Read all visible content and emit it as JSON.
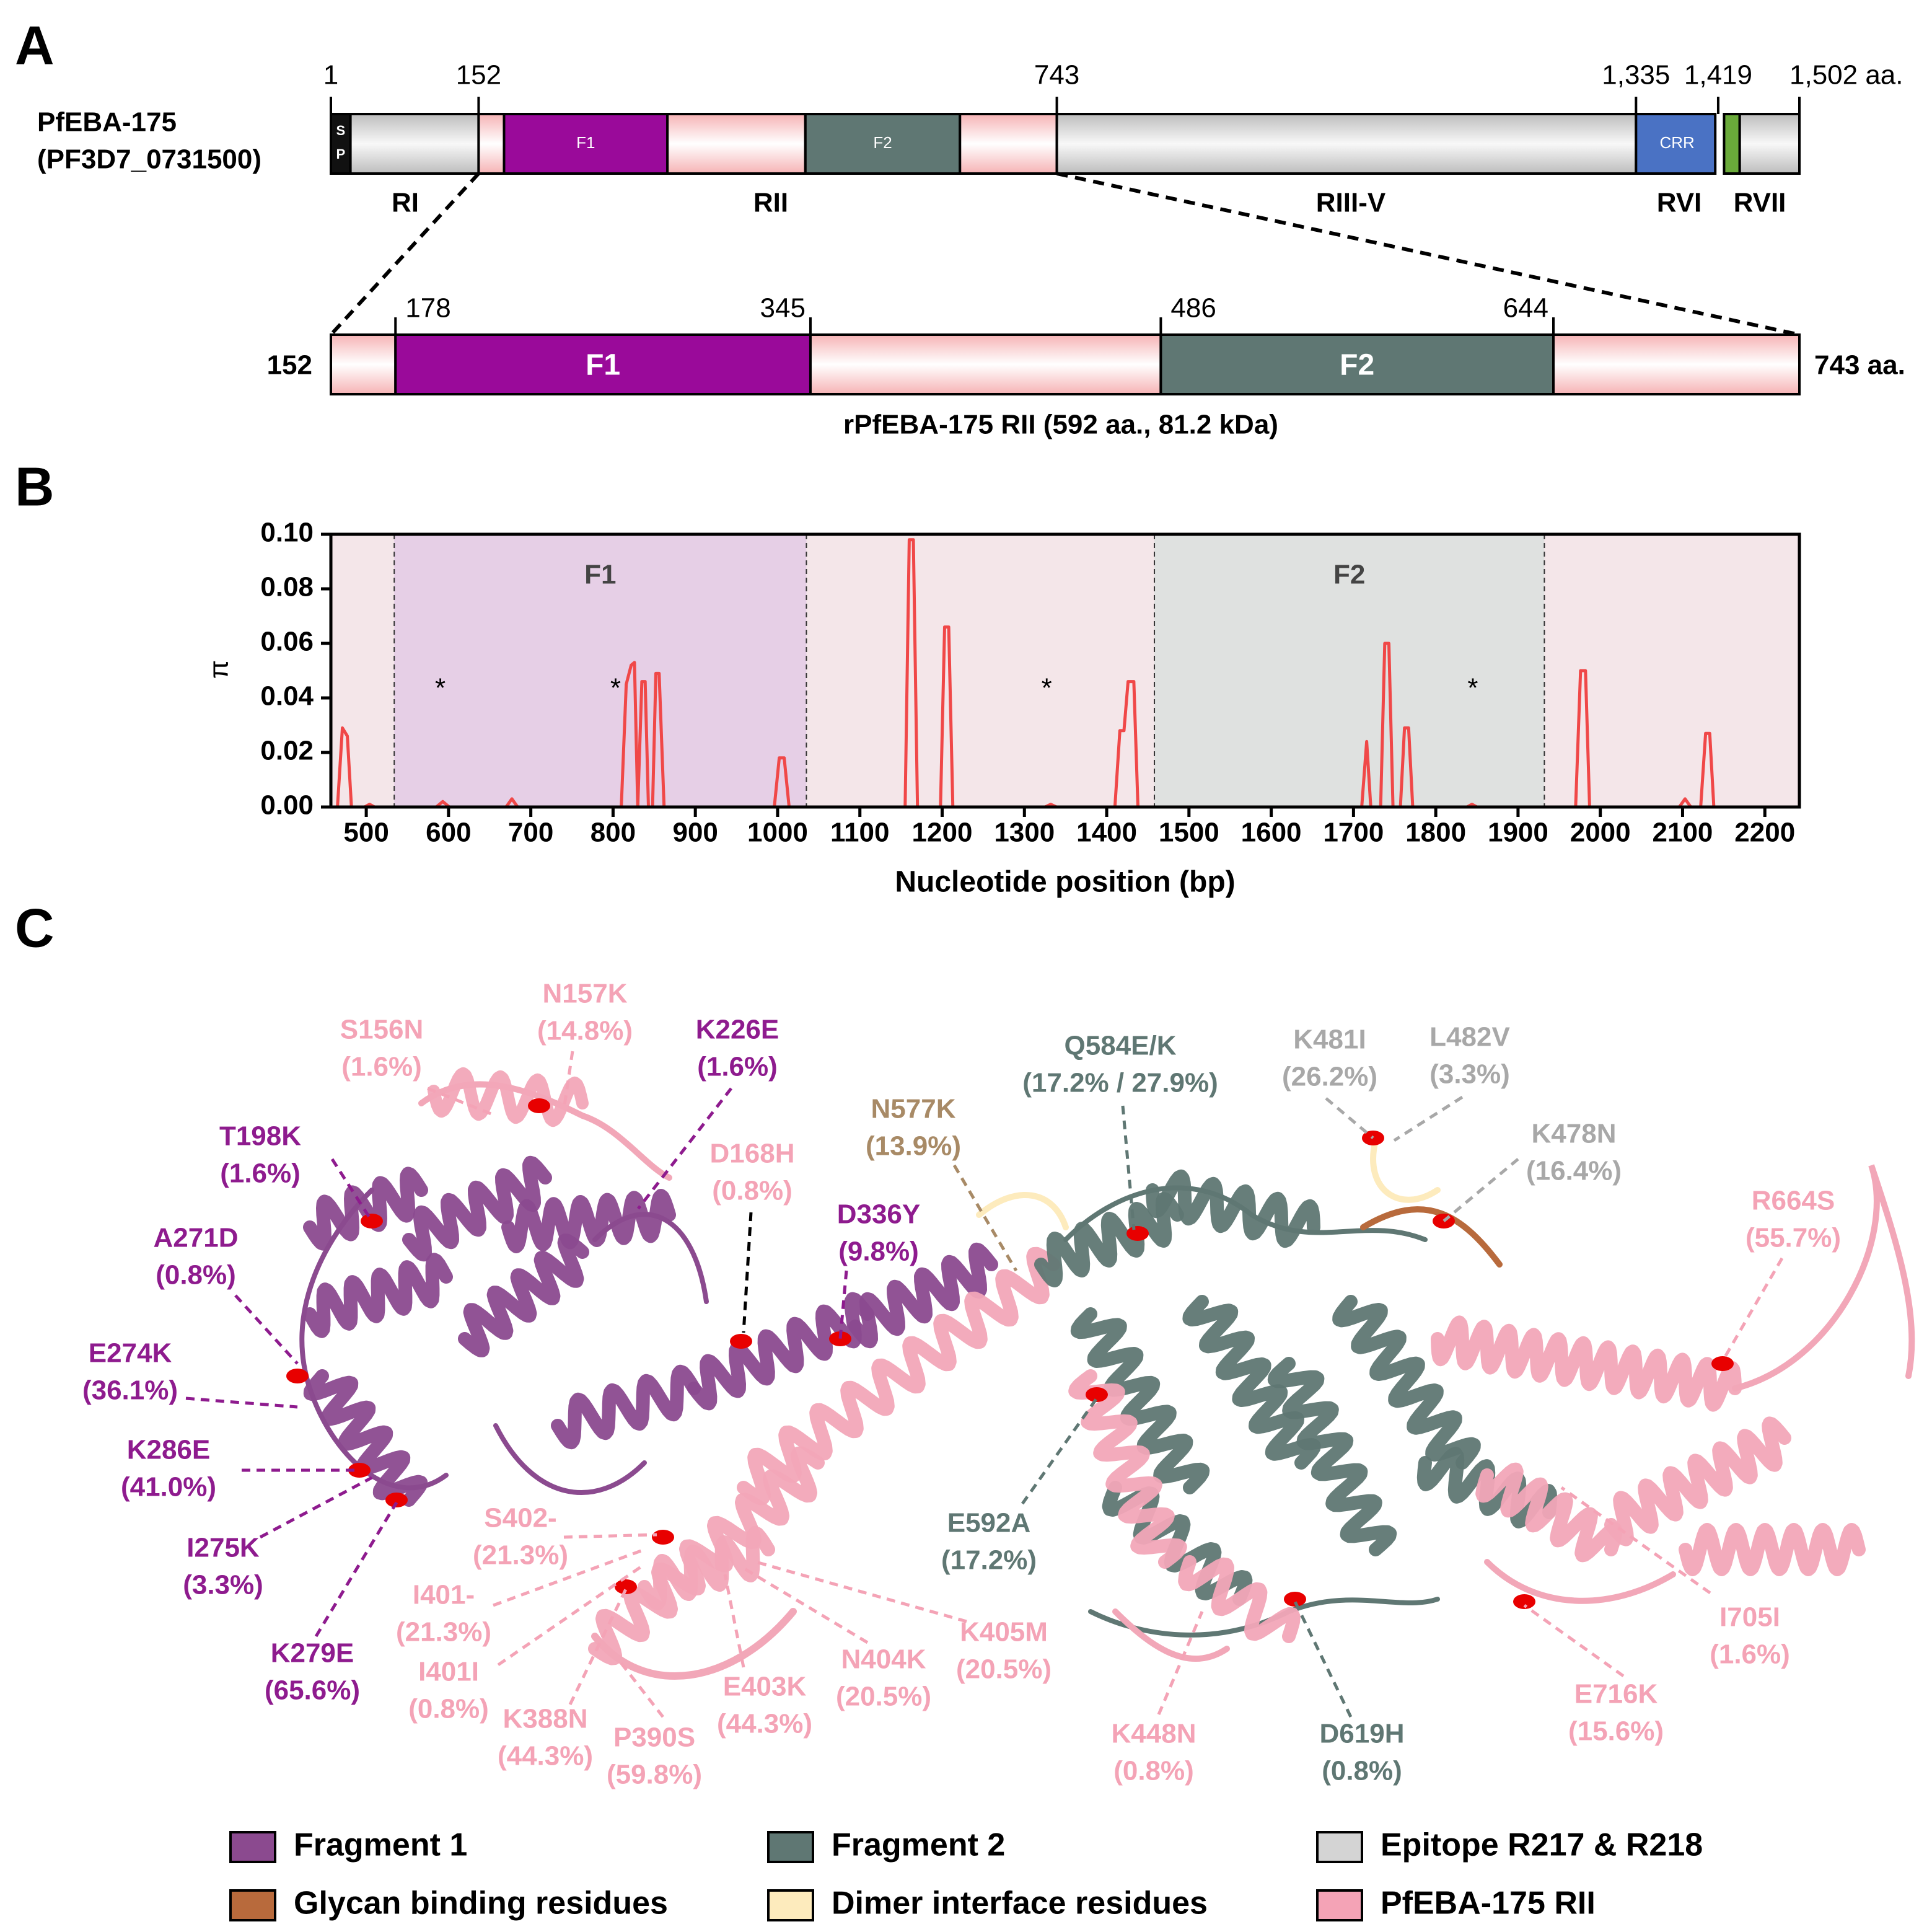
{
  "panel_labels": [
    "A",
    "B",
    "C"
  ],
  "domain_map": {
    "protein": "PfEBA-175",
    "gene_id": "(PF3D7_0731500)",
    "ticks": [
      {
        "value": 1,
        "label": "1"
      },
      {
        "value": 152,
        "label": "152"
      },
      {
        "value": 743,
        "label": "743"
      },
      {
        "value": 1335,
        "label": "1,335"
      },
      {
        "value": 1419,
        "label": "1,419"
      },
      {
        "value": 1502,
        "label": "1,502 aa."
      }
    ],
    "sp_label": [
      "S",
      "P"
    ],
    "crr_label": "CRR",
    "regions": [
      "RI",
      "RII",
      "RIII-V",
      "RVI",
      "RVII"
    ],
    "zoom": {
      "ends": [
        {
          "value": 152,
          "label": "152"
        },
        {
          "value": 743,
          "label": "743 aa."
        }
      ],
      "ticks": [
        178,
        345,
        486,
        644
      ],
      "fragments": [
        "F1",
        "F2"
      ],
      "caption": "rPfEBA-175 RII (592 aa., 81.2 kDa)"
    }
  },
  "chart_data": {
    "type": "line",
    "xlabel": "Nucleotide position (bp)",
    "ylabel": "π",
    "xlim": [
      457,
      2242
    ],
    "ylim": [
      0,
      0.1
    ],
    "xticks": [
      500,
      600,
      700,
      800,
      900,
      1000,
      1100,
      1200,
      1300,
      1400,
      1500,
      1600,
      1700,
      1800,
      1900,
      2000,
      2100,
      2200
    ],
    "yticks": [
      {
        "value": 0,
        "label": "0.00"
      },
      {
        "value": 0.02,
        "label": "0.02"
      },
      {
        "value": 0.04,
        "label": "0.04"
      },
      {
        "value": 0.06,
        "label": "0.06"
      },
      {
        "value": 0.08,
        "label": "0.08"
      },
      {
        "value": 0.1,
        "label": "0.10"
      }
    ],
    "regions": [
      {
        "label": "F1",
        "start": 534,
        "end": 1035,
        "color": "#e6cfe6"
      },
      {
        "label": "F2",
        "start": 1458,
        "end": 1932,
        "color": "#dfe1e0"
      }
    ],
    "background": "#f4e6e9",
    "annotations": [
      {
        "text": "*",
        "x": 590,
        "y": 0.043
      },
      {
        "text": "*",
        "x": 803,
        "y": 0.043
      },
      {
        "text": "*",
        "x": 1327,
        "y": 0.043
      },
      {
        "text": "*",
        "x": 1845,
        "y": 0.043
      }
    ],
    "series": [
      {
        "color": "#f04848",
        "x": [
          457,
          465,
          471,
          477,
          482,
          498,
          504,
          510,
          585,
          593,
          601,
          670,
          677,
          684,
          810,
          816,
          822,
          826,
          830,
          835,
          839,
          843,
          848,
          852,
          856,
          862,
          996,
          1002,
          1008,
          1014,
          1155,
          1160,
          1165,
          1170,
          1198,
          1203,
          1208,
          1213,
          1325,
          1332,
          1339,
          1410,
          1416,
          1421,
          1426,
          1433,
          1438,
          1710,
          1716,
          1721,
          1733,
          1738,
          1743,
          1748,
          1757,
          1762,
          1767,
          1772,
          1838,
          1844,
          1850,
          1970,
          1976,
          1982,
          1987,
          2096,
          2103,
          2110,
          2122,
          2128,
          2133,
          2138,
          2228
        ],
        "values": [
          0,
          0,
          0.029,
          0.026,
          0,
          0,
          0.001,
          0,
          0,
          0.002,
          0,
          0,
          0.003,
          0,
          0,
          0.045,
          0.052,
          0.053,
          0,
          0.046,
          0.046,
          0,
          0,
          0.049,
          0.049,
          0,
          0,
          0.018,
          0.018,
          0,
          0,
          0.098,
          0.098,
          0,
          0,
          0.066,
          0.066,
          0,
          0,
          0.001,
          0,
          0,
          0.028,
          0.028,
          0.046,
          0.046,
          0,
          0,
          0.024,
          0,
          0,
          0.06,
          0.06,
          0,
          0,
          0.029,
          0.029,
          0,
          0,
          0.001,
          0,
          0,
          0.05,
          0.05,
          0,
          0,
          0.003,
          0,
          0,
          0.027,
          0.027,
          0,
          0
        ]
      }
    ]
  },
  "structure": {
    "labels": [
      {
        "name": "S156N",
        "freq": "(1.6%)",
        "color": "#f4a3b6"
      },
      {
        "name": "N157K",
        "freq": "(14.8%)",
        "color": "#f4a3b6"
      },
      {
        "name": "K226E",
        "freq": "(1.6%)",
        "color": "#8e1b8e"
      },
      {
        "name": "T198K",
        "freq": "(1.6%)",
        "color": "#8e1b8e"
      },
      {
        "name": "D168H",
        "freq": "(0.8%)",
        "color": "#f4a3b6"
      },
      {
        "name": "D336Y",
        "freq": "(9.8%)",
        "color": "#8e1b8e"
      },
      {
        "name": "A271D",
        "freq": "(0.8%)",
        "color": "#8e1b8e"
      },
      {
        "name": "E274K",
        "freq": "(36.1%)",
        "color": "#8e1b8e"
      },
      {
        "name": "K286E",
        "freq": "(41.0%)",
        "color": "#8e1b8e"
      },
      {
        "name": "I275K",
        "freq": "(3.3%)",
        "color": "#8e1b8e"
      },
      {
        "name": "K279E",
        "freq": "(65.6%)",
        "color": "#8e1b8e"
      },
      {
        "name": "S402-",
        "freq": "(21.3%)",
        "color": "#f4a3b6"
      },
      {
        "name": "I401-",
        "freq": "(21.3%)",
        "color": "#f4a3b6"
      },
      {
        "name": "I401I",
        "freq": "(0.8%)",
        "color": "#f4a3b6"
      },
      {
        "name": "K388N",
        "freq": "(44.3%)",
        "color": "#f4a3b6"
      },
      {
        "name": "P390S",
        "freq": "(59.8%)",
        "color": "#f4a3b6"
      },
      {
        "name": "E403K",
        "freq": "(44.3%)",
        "color": "#f4a3b6"
      },
      {
        "name": "N404K",
        "freq": "(20.5%)",
        "color": "#f4a3b6"
      },
      {
        "name": "K405M",
        "freq": "(20.5%)",
        "color": "#f4a3b6"
      },
      {
        "name": "N577K",
        "freq": "(13.9%)",
        "color": "#a88a66"
      },
      {
        "name": "Q584E/K",
        "freq": "(17.2% / 27.9%)",
        "color": "#5f7773"
      },
      {
        "name": "E592A",
        "freq": "(17.2%)",
        "color": "#5f7773"
      },
      {
        "name": "K481I",
        "freq": "(26.2%)",
        "color": "#a8a8a8"
      },
      {
        "name": "L482V",
        "freq": "(3.3%)",
        "color": "#a8a8a8"
      },
      {
        "name": "K478N",
        "freq": "(16.4%)",
        "color": "#a8a8a8"
      },
      {
        "name": "R664S",
        "freq": "(55.7%)",
        "color": "#f4a3b6"
      },
      {
        "name": "I705I",
        "freq": "(1.6%)",
        "color": "#f4a3b6"
      },
      {
        "name": "E716K",
        "freq": "(15.6%)",
        "color": "#f4a3b6"
      },
      {
        "name": "K448N",
        "freq": "(0.8%)",
        "color": "#f4a3b6"
      },
      {
        "name": "D619H",
        "freq": "(0.8%)",
        "color": "#5f7773"
      }
    ],
    "legend": [
      {
        "name": "Fragment 1",
        "color": "#8b4a8f"
      },
      {
        "name": "Fragment 2",
        "color": "#5f7773"
      },
      {
        "name": "Epitope R217 & R218",
        "color": "#d4d4d4"
      },
      {
        "name": "Glycan binding residues",
        "color": "#b86a3c"
      },
      {
        "name": "Dimer interface residues",
        "color": "#fdebbd"
      },
      {
        "name": "PfEBA-175 RII",
        "color": "#f4a3b6"
      }
    ]
  }
}
